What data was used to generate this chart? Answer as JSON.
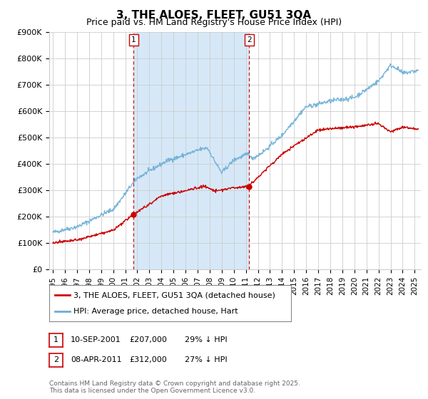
{
  "title": "3, THE ALOES, FLEET, GU51 3QA",
  "subtitle": "Price paid vs. HM Land Registry's House Price Index (HPI)",
  "ylabel_values": [
    "£0",
    "£100K",
    "£200K",
    "£300K",
    "£400K",
    "£500K",
    "£600K",
    "£700K",
    "£800K",
    "£900K"
  ],
  "yticks": [
    0,
    100000,
    200000,
    300000,
    400000,
    500000,
    600000,
    700000,
    800000,
    900000
  ],
  "xmin": 1994.7,
  "xmax": 2025.5,
  "ymin": 0,
  "ymax": 900000,
  "marker1_x": 2001.7,
  "marker1_label": "1",
  "marker1_dot_y": 207000,
  "marker2_x": 2011.27,
  "marker2_label": "2",
  "marker2_dot_y": 312000,
  "legend_line1": "3, THE ALOES, FLEET, GU51 3QA (detached house)",
  "legend_line2": "HPI: Average price, detached house, Hart",
  "table_row1": [
    "1",
    "10-SEP-2001",
    "£207,000",
    "29% ↓ HPI"
  ],
  "table_row2": [
    "2",
    "08-APR-2011",
    "£312,000",
    "27% ↓ HPI"
  ],
  "footer": "Contains HM Land Registry data © Crown copyright and database right 2025.\nThis data is licensed under the Open Government Licence v3.0.",
  "red_color": "#cc0000",
  "blue_color": "#6baed6",
  "shading_color": "#d6e8f7",
  "grid_color": "#cccccc",
  "background_color": "#ffffff"
}
